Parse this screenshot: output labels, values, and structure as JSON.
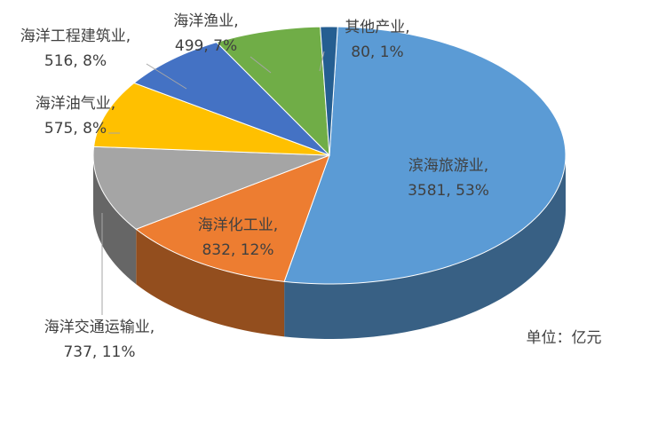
{
  "chart_data": {
    "type": "pie3d",
    "categories": [
      "滨海旅游业,",
      "海洋化工业,",
      "海洋交通运输业,",
      "海洋油气业,",
      "海洋工程建筑业,",
      "海洋渔业,",
      "其他产业,"
    ],
    "values": [
      3581,
      832,
      737,
      575,
      516,
      499,
      80
    ],
    "value_labels": [
      "3581, 53%",
      "832, 12%",
      "737, 11%",
      "575, 8%",
      "516, 8%",
      "499, 7%",
      "80, 1%"
    ],
    "colors": [
      "#5b9bd5",
      "#ed7d31",
      "#a5a5a5",
      "#ffc000",
      "#4472c4",
      "#70ad47",
      "#255e91"
    ],
    "unit_note": "单位：亿元"
  }
}
